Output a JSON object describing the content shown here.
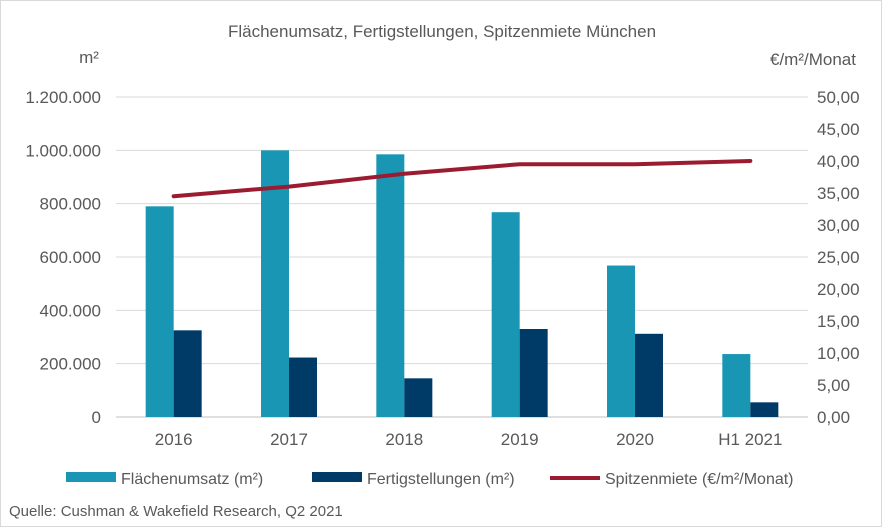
{
  "chart_data": {
    "type": "bar",
    "title": "Flächenumsatz, Fertigstellungen, Spitzenmiete München",
    "ylabel_left": "m²",
    "ylabel_right": "€/m²/Monat",
    "categories": [
      "2016",
      "2017",
      "2018",
      "2019",
      "2020",
      "H1 2021"
    ],
    "ylim_left": [
      0,
      1200000
    ],
    "ylim_right": [
      0,
      50
    ],
    "left_ticks": [
      "0",
      "200.000",
      "400.000",
      "600.000",
      "800.000",
      "1.000.000",
      "1.200.000"
    ],
    "right_ticks": [
      "0,00",
      "5,00",
      "10,00",
      "15,00",
      "20,00",
      "25,00",
      "30,00",
      "35,00",
      "40,00",
      "45,00",
      "50,00"
    ],
    "grid": true,
    "legend_position": "bottom",
    "series": [
      {
        "name": "Flächenumsatz (m²)",
        "type": "bar",
        "axis": "left",
        "color": "#1896b4",
        "values": [
          790000,
          1000000,
          985000,
          768000,
          568000,
          236000
        ]
      },
      {
        "name": "Fertigstellungen (m²)",
        "type": "bar",
        "axis": "left",
        "color": "#003a66",
        "values": [
          325000,
          223000,
          145000,
          330000,
          312000,
          55000
        ]
      },
      {
        "name": "Spitzenmiete (€/m²/Monat)",
        "type": "line",
        "axis": "right",
        "color": "#9b1b30",
        "values": [
          34.5,
          36.0,
          38.0,
          39.5,
          39.5,
          40.0
        ]
      }
    ],
    "source": "Quelle: Cushman & Wakefield Research, Q2 2021"
  }
}
